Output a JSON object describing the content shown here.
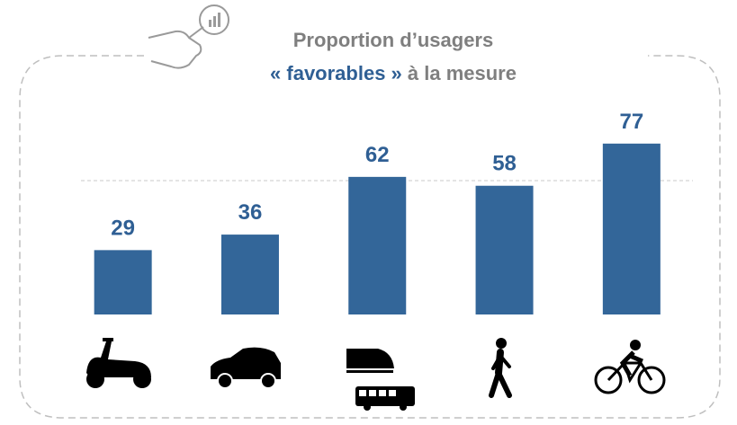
{
  "chart_data": {
    "type": "bar",
    "title": [
      "Proportion d’usagers",
      "« favorables »",
      " à la mesure"
    ],
    "categories": [
      null,
      null,
      null,
      null,
      null
    ],
    "values": [
      29,
      36,
      62,
      58,
      77
    ],
    "color": "#336699"
  }
}
